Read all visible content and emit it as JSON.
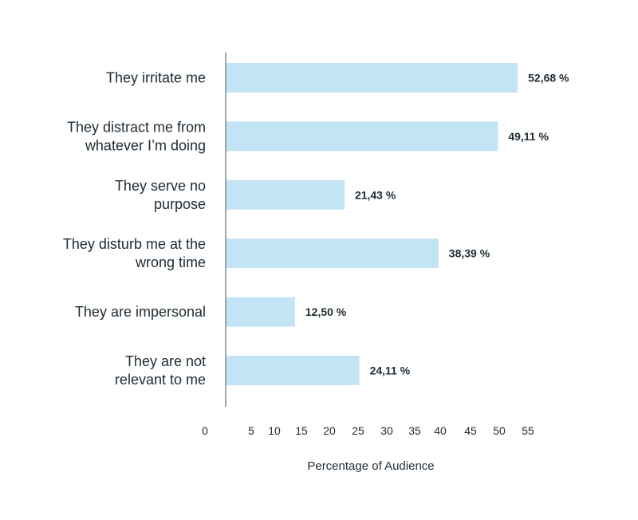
{
  "chart_data": {
    "type": "bar",
    "orientation": "horizontal",
    "categories": [
      [
        "They irritate me"
      ],
      [
        "They distract me from",
        "whatever I’m doing"
      ],
      [
        "They serve no",
        "purpose"
      ],
      [
        "They disturb me at the",
        "wrong time"
      ],
      [
        "They are impersonal"
      ],
      [
        "They are not",
        "relevant to me"
      ]
    ],
    "values": [
      52.68,
      49.11,
      21.43,
      38.39,
      12.5,
      24.11
    ],
    "value_labels": [
      "52,68 %",
      "49,11 %",
      "21,43 %",
      "38,39 %",
      "12,50 %",
      "24,11 %"
    ],
    "x_ticks": [
      0,
      5,
      10,
      15,
      20,
      25,
      30,
      35,
      40,
      45,
      50,
      55
    ],
    "xlabel": "Percentage of Audience",
    "xlim": [
      0,
      55
    ],
    "grid": false,
    "colors": {
      "bar": "#c3e4f4",
      "axis": "#7a8b94",
      "text": "#1e2b33"
    }
  }
}
